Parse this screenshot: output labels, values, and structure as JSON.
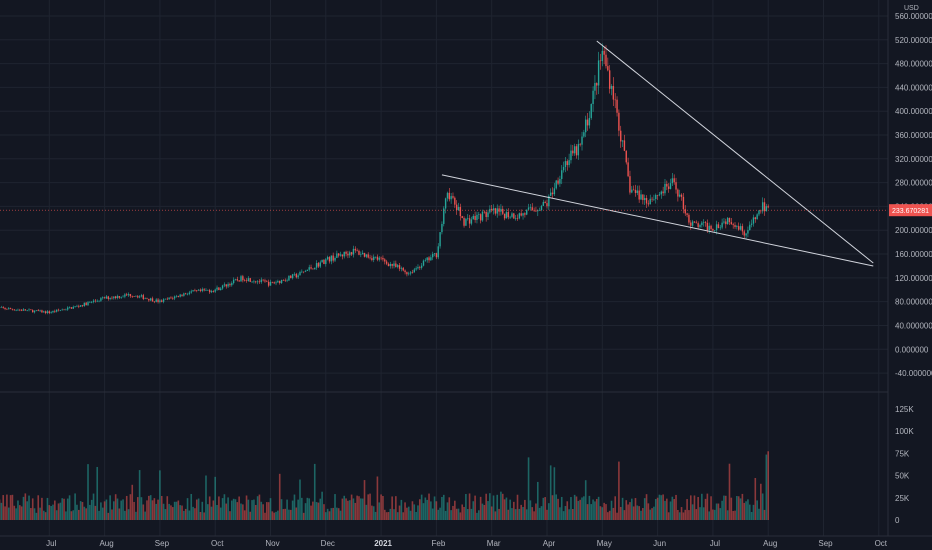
{
  "chart_data": {
    "type": "candlestick",
    "currency": "USD",
    "colors": {
      "up": "#26a69a",
      "down": "#ef5350",
      "background": "#131722",
      "grid": "#1f2430",
      "text": "#b2b5be",
      "trendline": "#d1d4dc",
      "price_line": "#ef5350"
    },
    "current_price": {
      "value": 233.6702,
      "label": "233.670281"
    },
    "price_axis": {
      "ticks": [
        560,
        520,
        480,
        440,
        400,
        360,
        320,
        280,
        240,
        200,
        160,
        120,
        80,
        40,
        0,
        -40
      ],
      "labels": [
        "560.000000",
        "520.000000",
        "480.000000",
        "440.000000",
        "400.000000",
        "360.000000",
        "320.000000",
        "280.000000",
        "240.000000",
        "200.000000",
        "160.000000",
        "120.000000",
        "80.000000",
        "40.000000",
        "0.000000",
        "-40.000000"
      ],
      "range": [
        -60,
        570
      ]
    },
    "volume_axis": {
      "ticks": [
        125000,
        100000,
        75000,
        50000,
        25000,
        0
      ],
      "labels": [
        "125K",
        "100K",
        "75K",
        "50K",
        "25K",
        "0"
      ],
      "range": [
        0,
        135000
      ]
    },
    "time_axis": {
      "labels": [
        "Jul",
        "Aug",
        "Sep",
        "Oct",
        "Nov",
        "Dec",
        "2021",
        "Feb",
        "Mar",
        "Apr",
        "May",
        "Jun",
        "Jul",
        "Aug",
        "Sep",
        "Oct"
      ],
      "bold": [
        false,
        false,
        false,
        false,
        false,
        false,
        true,
        false,
        false,
        false,
        false,
        false,
        false,
        false,
        false,
        false
      ],
      "months_from_start": [
        1,
        2,
        3,
        4,
        5,
        6,
        7,
        8,
        9,
        10,
        11,
        12,
        13,
        14,
        15,
        16
      ]
    },
    "price_series": [
      [
        0,
        70
      ],
      [
        0.5,
        66
      ],
      [
        1,
        62
      ],
      [
        1.5,
        72
      ],
      [
        2,
        86
      ],
      [
        2.5,
        92
      ],
      [
        3,
        80
      ],
      [
        3.5,
        95
      ],
      [
        4,
        100
      ],
      [
        4.5,
        120
      ],
      [
        5,
        110
      ],
      [
        5.5,
        125
      ],
      [
        6,
        150
      ],
      [
        6.5,
        165
      ],
      [
        7,
        150
      ],
      [
        7.5,
        128
      ],
      [
        8,
        160
      ],
      [
        8.2,
        265
      ],
      [
        8.5,
        215
      ],
      [
        9,
        230
      ],
      [
        9.5,
        225
      ],
      [
        10,
        245
      ],
      [
        10.3,
        310
      ],
      [
        10.6,
        340
      ],
      [
        10.8,
        410
      ],
      [
        11,
        500
      ],
      [
        11.2,
        430
      ],
      [
        11.5,
        270
      ],
      [
        11.8,
        250
      ],
      [
        12,
        260
      ],
      [
        12.3,
        280
      ],
      [
        12.6,
        210
      ],
      [
        13,
        205
      ],
      [
        13.3,
        220
      ],
      [
        13.6,
        195
      ],
      [
        13.9,
        240
      ],
      [
        14,
        233
      ]
    ],
    "trendlines": [
      {
        "from": [
          8.1,
          293
        ],
        "to": [
          15.9,
          140
        ]
      },
      {
        "from": [
          10.9,
          518
        ],
        "to": [
          15.9,
          145
        ]
      }
    ]
  }
}
